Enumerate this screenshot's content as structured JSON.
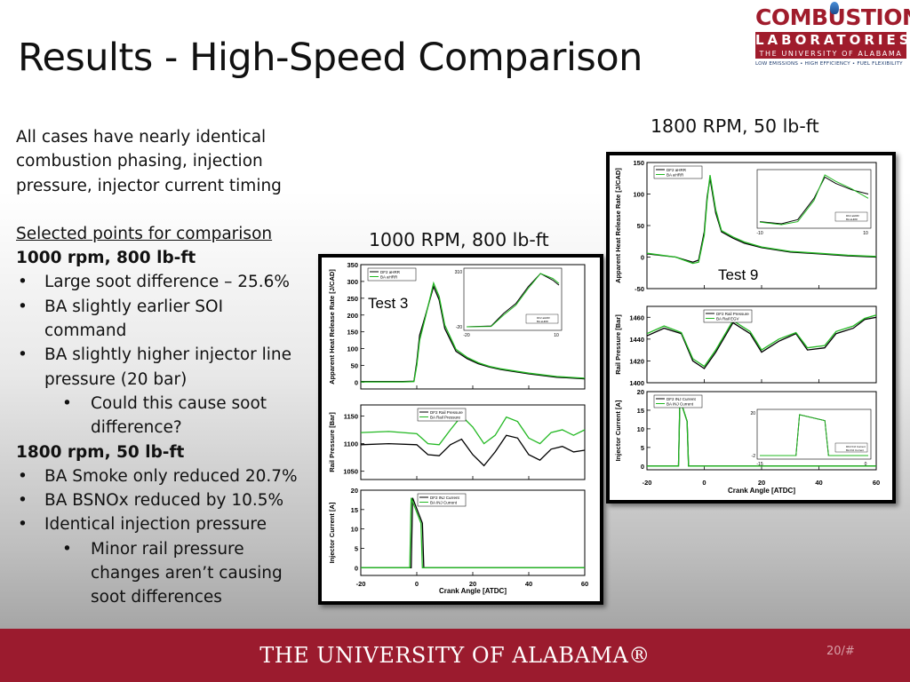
{
  "slide": {
    "title": "Results - High-Speed Comparison",
    "page_number": "20/#",
    "footer_text": "THE UNIVERSITY OF ALABAMA®"
  },
  "logo": {
    "line1": "COMBUSTION",
    "line2": "LABORATORIES",
    "line3": "THE UNIVERSITY OF ALABAMA",
    "line4": "LOW EMISSIONS • HIGH EFFICIENCY • FUEL FLEXIBILITY",
    "color": "#a01c2c"
  },
  "body": {
    "intro": "All cases have nearly identical combustion phasing, injection pressure, injector current timing",
    "selected_heading": "Selected points for comparison",
    "group1_heading": "1000 rpm, 800 lb-ft",
    "group1_bullets": [
      "Large soot difference – 25.6%",
      "BA slightly earlier SOI command",
      "BA slightly higher injector line pressure (20 bar)"
    ],
    "group1_sub": "Could this cause soot difference?",
    "group2_heading": "1800 rpm, 50 lb-ft",
    "group2_bullets": [
      "BA Smoke only reduced 20.7%",
      "BA BSNOx reduced by 10.5%",
      "Identical injection pressure"
    ],
    "group2_sub": "Minor rail pressure changes aren’t causing soot differences"
  },
  "chart_data": [
    {
      "type": "line",
      "figure_label": "1000 RPM, 800 lb-ft",
      "annotation": "Test 3",
      "xlabel": "Crank Angle [ATDC]",
      "xlim": [
        -20,
        60
      ],
      "x_ticks": [
        "-20",
        "0",
        "20",
        "40",
        "60"
      ],
      "series_colors": {
        "DF2": "#000000",
        "BA": "#22b822"
      },
      "panels": [
        {
          "name": "heat-release",
          "ylabel": "Apparent  Heat Release Rate [J/CAD]",
          "ylim": [
            -20,
            350
          ],
          "y_ticks": [
            "350",
            "300",
            "250",
            "200",
            "150",
            "100",
            "50",
            "0"
          ],
          "legend": [
            "DF2 aHRR",
            "BA aHRR"
          ],
          "series": [
            {
              "name": "DF2 aHRR",
              "x": [
                -20,
                -5,
                -1,
                0,
                1,
                3,
                6,
                8,
                10,
                14,
                18,
                22,
                26,
                30,
                40,
                50,
                60
              ],
              "y": [
                2,
                2,
                3,
                60,
                140,
                195,
                285,
                245,
                160,
                92,
                70,
                55,
                45,
                38,
                25,
                15,
                10
              ]
            },
            {
              "name": "BA aHRR",
              "x": [
                -20,
                -5,
                -1,
                0,
                1,
                3,
                6,
                8,
                10,
                14,
                18,
                22,
                26,
                30,
                40,
                50,
                60
              ],
              "y": [
                1,
                1,
                2,
                50,
                125,
                190,
                295,
                255,
                170,
                98,
                74,
                58,
                47,
                40,
                27,
                17,
                12
              ]
            }
          ],
          "inset": {
            "y_ticks": [
              "310",
              "-20"
            ],
            "x_ticks": [
              "-20",
              "10"
            ],
            "legend": [
              "DF2 aHRR",
              "BA aHRR"
            ],
            "series": [
              {
                "name": "DF2 aHRR",
                "x": [
                  -20,
                  -12,
                  -8,
                  -4,
                  0,
                  4,
                  8,
                  10
                ],
                "y": [
                  -20,
                  -15,
                  60,
                  120,
                  220,
                  300,
                  260,
                  230
                ]
              },
              {
                "name": "BA aHRR",
                "x": [
                  -20,
                  -12,
                  -8,
                  -4,
                  0,
                  4,
                  8,
                  10
                ],
                "y": [
                  -20,
                  -18,
                  50,
                  110,
                  210,
                  300,
                  270,
                  240
                ]
              }
            ]
          }
        },
        {
          "name": "rail-pressure",
          "ylabel": "Rail Pressure [Bar]",
          "ylim": [
            1035,
            1170
          ],
          "y_ticks": [
            "1150",
            "1100",
            "1050"
          ],
          "legend": [
            "DF2 Rail Pressure",
            "BA Rail Pressure"
          ],
          "series": [
            {
              "name": "DF2 Rail Pressure",
              "x": [
                -20,
                -10,
                0,
                4,
                8,
                12,
                16,
                20,
                24,
                28,
                32,
                36,
                40,
                44,
                48,
                52,
                56,
                60
              ],
              "y": [
                1098,
                1100,
                1098,
                1080,
                1078,
                1098,
                1108,
                1080,
                1060,
                1085,
                1115,
                1110,
                1080,
                1070,
                1090,
                1095,
                1085,
                1088
              ]
            },
            {
              "name": "BA Rail Pressure",
              "x": [
                -20,
                -10,
                0,
                4,
                8,
                12,
                16,
                20,
                24,
                28,
                32,
                36,
                40,
                44,
                48,
                52,
                56,
                60
              ],
              "y": [
                1120,
                1122,
                1118,
                1100,
                1098,
                1125,
                1150,
                1130,
                1100,
                1115,
                1148,
                1140,
                1110,
                1100,
                1120,
                1125,
                1115,
                1125
              ]
            }
          ]
        },
        {
          "name": "injector-current",
          "ylabel": "Injector Current [A]",
          "ylim": [
            -2,
            20
          ],
          "y_ticks": [
            "20",
            "15",
            "10",
            "5",
            "0"
          ],
          "legend": [
            "DF2 INJ Current",
            "BA INJ Current"
          ],
          "series": [
            {
              "name": "DF2 INJ Current",
              "x": [
                -20,
                -2,
                -1.5,
                2,
                2.5,
                60
              ],
              "y": [
                0,
                0,
                18,
                11.5,
                0,
                0
              ]
            },
            {
              "name": "BA INJ Current",
              "x": [
                -20,
                -2.5,
                -2,
                1.5,
                2,
                60
              ],
              "y": [
                0,
                0,
                18,
                11.5,
                0,
                0
              ]
            }
          ]
        }
      ]
    },
    {
      "type": "line",
      "figure_label": "1800 RPM, 50 lb-ft",
      "annotation": "Test 9",
      "xlabel": "Crank Angle [ATDC]",
      "xlim": [
        -20,
        60
      ],
      "x_ticks": [
        "-20",
        "0",
        "20",
        "40",
        "60"
      ],
      "series_colors": {
        "DF2": "#000000",
        "BA": "#22b822"
      },
      "panels": [
        {
          "name": "heat-release",
          "ylabel": "Apparent  Heat Release Rate [J/CAD]",
          "ylim": [
            -50,
            150
          ],
          "y_ticks": [
            "150",
            "100",
            "50",
            "0",
            "-50"
          ],
          "legend": [
            "DF2 aHRR",
            "BA aHRR"
          ],
          "series": [
            {
              "name": "DF2 aHRR",
              "x": [
                -20,
                -10,
                -4,
                -2,
                0,
                1,
                2,
                4,
                6,
                10,
                14,
                20,
                30,
                40,
                50,
                60
              ],
              "y": [
                5,
                0,
                -8,
                -5,
                40,
                95,
                125,
                70,
                40,
                30,
                22,
                15,
                8,
                5,
                2,
                0
              ]
            },
            {
              "name": "BA aHRR",
              "x": [
                -20,
                -10,
                -4,
                -2,
                0,
                1,
                2,
                4,
                6,
                10,
                14,
                20,
                30,
                40,
                50,
                60
              ],
              "y": [
                6,
                0,
                -10,
                -8,
                35,
                90,
                130,
                75,
                42,
                32,
                24,
                16,
                9,
                6,
                3,
                1
              ]
            }
          ],
          "inset": {
            "y_ticks": [],
            "x_ticks": [
              "-10",
              "10"
            ],
            "legend": [
              "DF2 aHRR",
              "BA aHRR"
            ],
            "series": [
              {
                "name": "DF2 aHRR",
                "x": [
                  -10,
                  -6,
                  -3,
                  0,
                  2,
                  4,
                  7,
                  10
                ],
                "y": [
                  5,
                  0,
                  10,
                  60,
                  110,
                  95,
                  80,
                  70
                ]
              },
              {
                "name": "BA aHRR",
                "x": [
                  -10,
                  -6,
                  -3,
                  0,
                  2,
                  4,
                  7,
                  10
                ],
                "y": [
                  4,
                  -2,
                  5,
                  55,
                  115,
                  100,
                  82,
                  60
                ]
              }
            ]
          }
        },
        {
          "name": "rail-pressure",
          "ylabel": "Rail Pressure [Bar]",
          "ylim": [
            1400,
            1470
          ],
          "y_ticks": [
            "1460",
            "1440",
            "1420",
            "1400"
          ],
          "legend": [
            "DF2 Rail Pressure",
            "BA Rail EGV"
          ],
          "series": [
            {
              "name": "DF2 Rail Pressure",
              "x": [
                -20,
                -14,
                -8,
                -4,
                0,
                4,
                10,
                16,
                20,
                26,
                32,
                36,
                42,
                46,
                52,
                56,
                60
              ],
              "y": [
                1443,
                1450,
                1445,
                1420,
                1413,
                1428,
                1455,
                1445,
                1428,
                1438,
                1445,
                1430,
                1432,
                1445,
                1450,
                1458,
                1460
              ]
            },
            {
              "name": "BA Rail EGV",
              "x": [
                -20,
                -14,
                -8,
                -4,
                0,
                4,
                10,
                16,
                20,
                26,
                32,
                36,
                42,
                46,
                52,
                56,
                60
              ],
              "y": [
                1445,
                1452,
                1446,
                1422,
                1415,
                1430,
                1457,
                1447,
                1430,
                1440,
                1446,
                1432,
                1434,
                1447,
                1452,
                1459,
                1462
              ]
            }
          ]
        },
        {
          "name": "injector-current",
          "ylabel": "Injector Current [A]",
          "ylim": [
            -1,
            20
          ],
          "y_ticks": [
            "20",
            "15",
            "10",
            "5",
            "0"
          ],
          "legend": [
            "DF2 INJ Current",
            "BA INJ Current"
          ],
          "series": [
            {
              "name": "DF2 INJ Current",
              "x": [
                -20,
                -9,
                -8.5,
                -6,
                -5.5,
                60
              ],
              "y": [
                0,
                0,
                18,
                12,
                0,
                0
              ]
            },
            {
              "name": "BA INJ Current",
              "x": [
                -20,
                -9,
                -8.5,
                -6,
                -5.5,
                60
              ],
              "y": [
                0,
                0,
                18,
                12,
                0,
                0
              ]
            }
          ],
          "inset": {
            "y_ticks": [
              "20",
              "-2"
            ],
            "x_ticks": [
              "-15",
              "0"
            ],
            "legend": [
              "DF2 INJ Current",
              "BA INJ Current"
            ],
            "series": [
              {
                "name": "DF2 INJ Current",
                "x": [
                  -15,
                  -10,
                  -9.5,
                  -6,
                  -5.5,
                  0
                ],
                "y": [
                  0,
                  0,
                  14,
                  12,
                  0,
                  0
                ]
              },
              {
                "name": "BA INJ Current",
                "x": [
                  -15,
                  -10,
                  -9.5,
                  -6,
                  -5.5,
                  0
                ],
                "y": [
                  0,
                  0,
                  14,
                  12,
                  0,
                  0
                ]
              }
            ]
          }
        }
      ]
    }
  ]
}
